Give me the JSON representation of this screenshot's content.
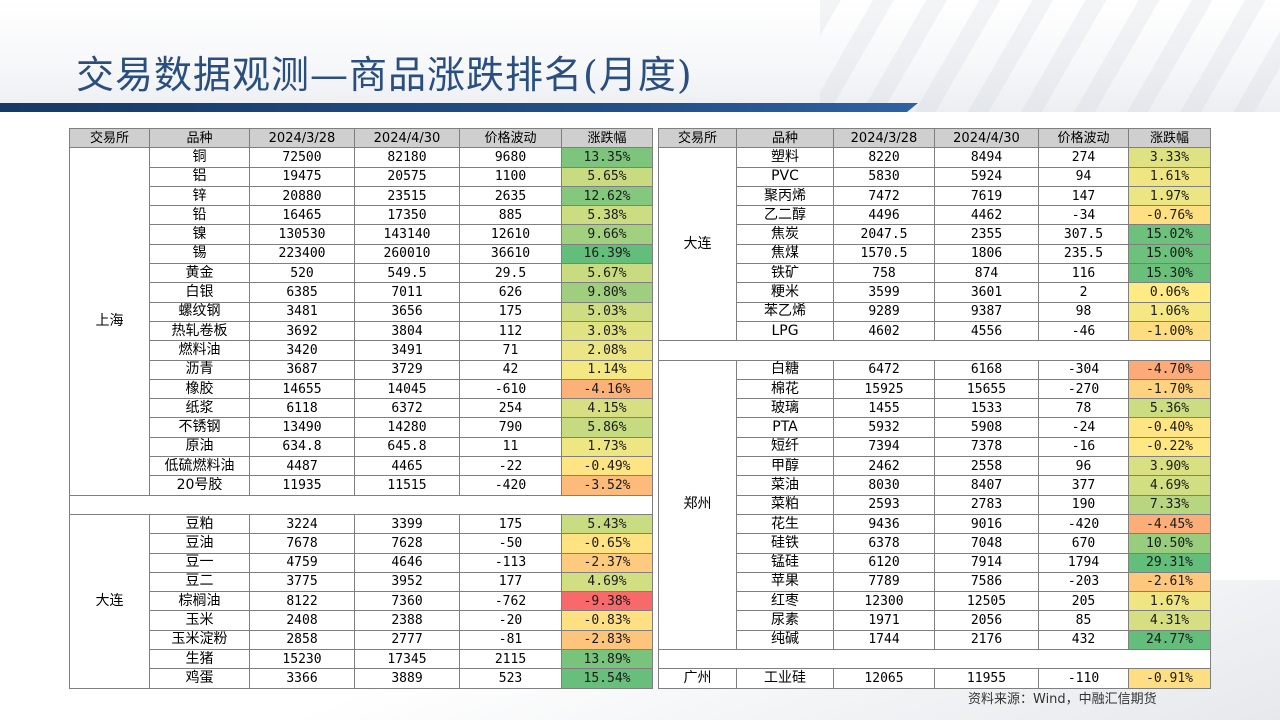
{
  "title": "交易数据观测—商品涨跌排名(月度)",
  "source": "资料来源：Wind，中融汇信期货",
  "headers": [
    "交易所",
    "品种",
    "2024/3/28",
    "2024/4/30",
    "价格波动",
    "涨跌幅"
  ],
  "left_groups": [
    {
      "exchange": "上海",
      "rows": [
        [
          "铜",
          "72500",
          "82180",
          "9680",
          "13.35%"
        ],
        [
          "铝",
          "19475",
          "20575",
          "1100",
          "5.65%"
        ],
        [
          "锌",
          "20880",
          "23515",
          "2635",
          "12.62%"
        ],
        [
          "铅",
          "16465",
          "17350",
          "885",
          "5.38%"
        ],
        [
          "镍",
          "130530",
          "143140",
          "12610",
          "9.66%"
        ],
        [
          "锡",
          "223400",
          "260010",
          "36610",
          "16.39%"
        ],
        [
          "黄金",
          "520",
          "549.5",
          "29.5",
          "5.67%"
        ],
        [
          "白银",
          "6385",
          "7011",
          "626",
          "9.80%"
        ],
        [
          "螺纹钢",
          "3481",
          "3656",
          "175",
          "5.03%"
        ],
        [
          "热轧卷板",
          "3692",
          "3804",
          "112",
          "3.03%"
        ],
        [
          "燃料油",
          "3420",
          "3491",
          "71",
          "2.08%"
        ],
        [
          "沥青",
          "3687",
          "3729",
          "42",
          "1.14%"
        ],
        [
          "橡胶",
          "14655",
          "14045",
          "-610",
          "-4.16%"
        ],
        [
          "纸浆",
          "6118",
          "6372",
          "254",
          "4.15%"
        ],
        [
          "不锈钢",
          "13490",
          "14280",
          "790",
          "5.86%"
        ],
        [
          "原油",
          "634.8",
          "645.8",
          "11",
          "1.73%"
        ],
        [
          "低硫燃料油",
          "4487",
          "4465",
          "-22",
          "-0.49%"
        ],
        [
          "20号胶",
          "11935",
          "11515",
          "-420",
          "-3.52%"
        ]
      ]
    },
    {
      "exchange": "大连",
      "rows": [
        [
          "豆粕",
          "3224",
          "3399",
          "175",
          "5.43%"
        ],
        [
          "豆油",
          "7678",
          "7628",
          "-50",
          "-0.65%"
        ],
        [
          "豆一",
          "4759",
          "4646",
          "-113",
          "-2.37%"
        ],
        [
          "豆二",
          "3775",
          "3952",
          "177",
          "4.69%"
        ],
        [
          "棕榈油",
          "8122",
          "7360",
          "-762",
          "-9.38%"
        ],
        [
          "玉米",
          "2408",
          "2388",
          "-20",
          "-0.83%"
        ],
        [
          "玉米淀粉",
          "2858",
          "2777",
          "-81",
          "-2.83%"
        ],
        [
          "生猪",
          "15230",
          "17345",
          "2115",
          "13.89%"
        ],
        [
          "鸡蛋",
          "3366",
          "3889",
          "523",
          "15.54%"
        ]
      ]
    }
  ],
  "right_groups": [
    {
      "exchange": "大连",
      "rows": [
        [
          "塑料",
          "8220",
          "8494",
          "274",
          "3.33%"
        ],
        [
          "PVC",
          "5830",
          "5924",
          "94",
          "1.61%"
        ],
        [
          "聚丙烯",
          "7472",
          "7619",
          "147",
          "1.97%"
        ],
        [
          "乙二醇",
          "4496",
          "4462",
          "-34",
          "-0.76%"
        ],
        [
          "焦炭",
          "2047.5",
          "2355",
          "307.5",
          "15.02%"
        ],
        [
          "焦煤",
          "1570.5",
          "1806",
          "235.5",
          "15.00%"
        ],
        [
          "铁矿",
          "758",
          "874",
          "116",
          "15.30%"
        ],
        [
          "粳米",
          "3599",
          "3601",
          "2",
          "0.06%"
        ],
        [
          "苯乙烯",
          "9289",
          "9387",
          "98",
          "1.06%"
        ],
        [
          "LPG",
          "4602",
          "4556",
          "-46",
          "-1.00%"
        ]
      ]
    },
    {
      "exchange": "郑州",
      "rows": [
        [
          "白糖",
          "6472",
          "6168",
          "-304",
          "-4.70%"
        ],
        [
          "棉花",
          "15925",
          "15655",
          "-270",
          "-1.70%"
        ],
        [
          "玻璃",
          "1455",
          "1533",
          "78",
          "5.36%"
        ],
        [
          "PTA",
          "5932",
          "5908",
          "-24",
          "-0.40%"
        ],
        [
          "短纤",
          "7394",
          "7378",
          "-16",
          "-0.22%"
        ],
        [
          "甲醇",
          "2462",
          "2558",
          "96",
          "3.90%"
        ],
        [
          "菜油",
          "8030",
          "8407",
          "377",
          "4.69%"
        ],
        [
          "菜粕",
          "2593",
          "2783",
          "190",
          "7.33%"
        ],
        [
          "花生",
          "9436",
          "9016",
          "-420",
          "-4.45%"
        ],
        [
          "硅铁",
          "6378",
          "7048",
          "670",
          "10.50%"
        ],
        [
          "锰硅",
          "6120",
          "7914",
          "1794",
          "29.31%"
        ],
        [
          "苹果",
          "7789",
          "7586",
          "-203",
          "-2.61%"
        ],
        [
          "红枣",
          "12300",
          "12505",
          "205",
          "1.67%"
        ],
        [
          "尿素",
          "1971",
          "2056",
          "85",
          "4.31%"
        ],
        [
          "纯碱",
          "1744",
          "2176",
          "432",
          "24.77%"
        ]
      ]
    },
    {
      "exchange": "广州",
      "rows": [
        [
          "工业硅",
          "12065",
          "11955",
          "-110",
          "-0.91%"
        ]
      ]
    }
  ]
}
